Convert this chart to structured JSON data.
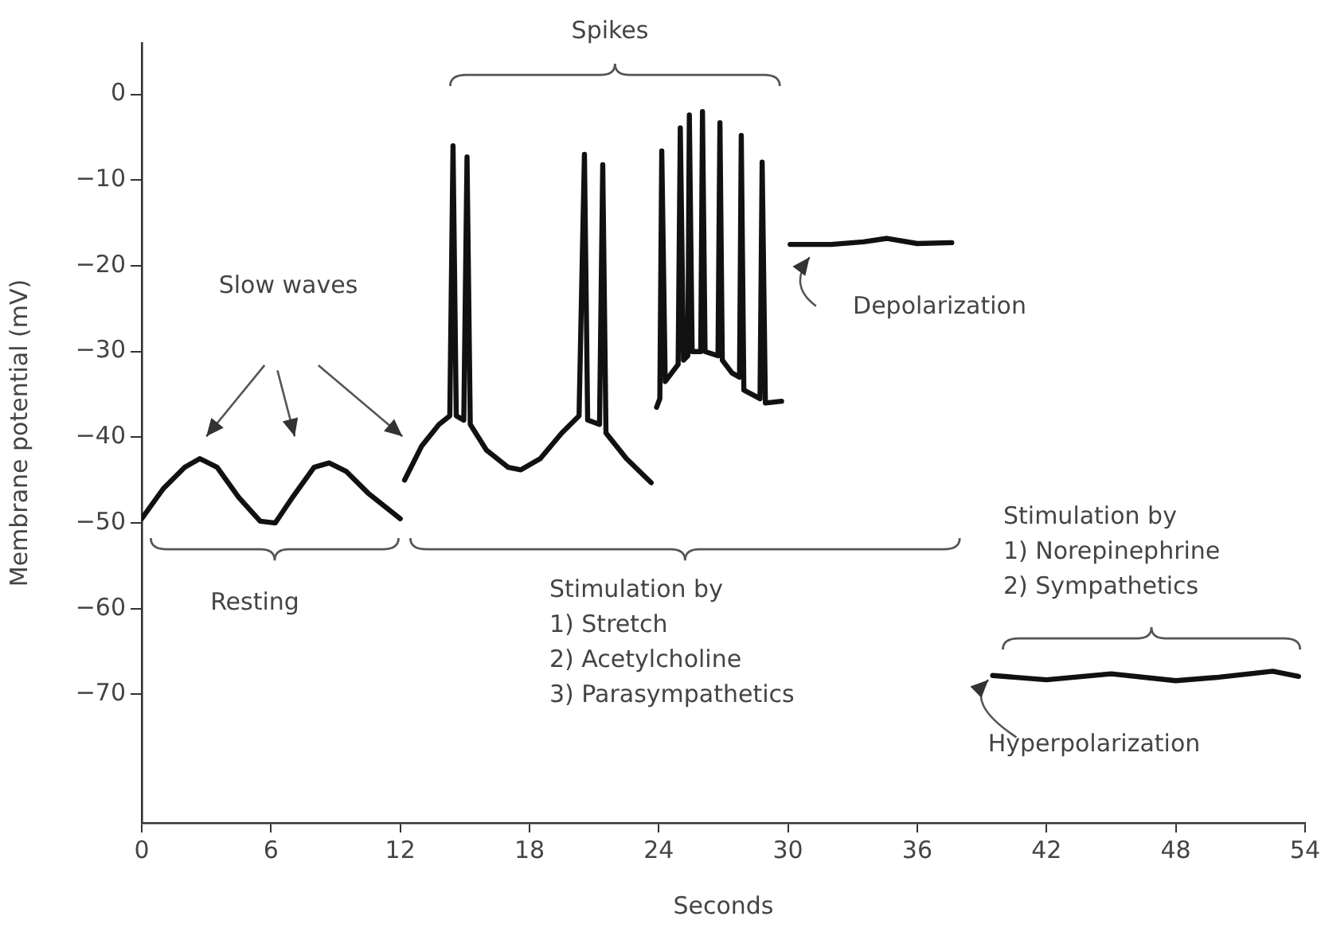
{
  "chart_data": {
    "type": "line",
    "xlabel": "Seconds",
    "ylabel": "Membrane potential (mV)",
    "xlim": [
      0,
      54
    ],
    "ylim": [
      -85,
      6
    ],
    "xticks": [
      0,
      6,
      12,
      18,
      24,
      30,
      36,
      42,
      48,
      54
    ],
    "yticks": [
      0,
      -10,
      -20,
      -30,
      -40,
      -50,
      -60,
      -70
    ],
    "grid": false,
    "legend": false,
    "marker": "none",
    "line_style": "solid",
    "series": [
      {
        "color": "#111111",
        "x": [
          0,
          1,
          2,
          2.7,
          3.5,
          4.5,
          5.5,
          6.2,
          7,
          8,
          8.7,
          9.5,
          10.5,
          12
        ],
        "values": [
          -49.5,
          -46,
          -43.5,
          -42.5,
          -43.5,
          -47,
          -49.8,
          -50,
          -47,
          -43.5,
          -43,
          -44,
          -46.5,
          -49.5
        ]
      },
      {
        "color": "#111111",
        "x": [
          12.2,
          13,
          13.8,
          14.3,
          14.45,
          14.6,
          14.95,
          15.1,
          15.25,
          16,
          17,
          17.6,
          18.5,
          19.5,
          20.3,
          20.55,
          20.7,
          21.25,
          21.4,
          21.55,
          22.5,
          23.65
        ],
        "values": [
          -45,
          -41,
          -38.5,
          -37.5,
          -6,
          -37.5,
          -38,
          -7.3,
          -38.5,
          -41.5,
          -43.5,
          -43.8,
          -42.5,
          -39.5,
          -37.5,
          -7,
          -38,
          -38.5,
          -8.2,
          -39.5,
          -42.5,
          -45.3
        ]
      },
      {
        "color": "#111111",
        "x": [
          23.9,
          24.05,
          24.14,
          24.3,
          24.9,
          25,
          25.15,
          25.35,
          25.42,
          25.55,
          25.95,
          26.03,
          26.15,
          26.75,
          26.84,
          26.95,
          27.4,
          27.75,
          27.83,
          27.95,
          28.7,
          28.8,
          28.95,
          29.7
        ],
        "values": [
          -36.5,
          -35.5,
          -6.6,
          -33.5,
          -31.5,
          -3.9,
          -31,
          -30.5,
          -2.4,
          -30,
          -30,
          -2,
          -30,
          -30.5,
          -3.3,
          -31,
          -32.5,
          -33,
          -4.8,
          -34.5,
          -35.5,
          -7.9,
          -36,
          -35.8
        ]
      },
      {
        "color": "#111111",
        "x": [
          30.1,
          32,
          33.5,
          34.6,
          36,
          37.6
        ],
        "values": [
          -17.5,
          -17.5,
          -17.2,
          -16.8,
          -17.4,
          -17.3
        ]
      },
      {
        "color": "#111111",
        "x": [
          39.5,
          42,
          45,
          48,
          50,
          52.5,
          53.7
        ],
        "values": [
          -67.8,
          -68.3,
          -67.6,
          -68.4,
          -68,
          -67.3,
          -67.9
        ]
      }
    ],
    "annotations": [
      "Spikes",
      "Slow waves",
      "Resting",
      "Stimulation by\n1) Stretch\n2) Acetylcholine\n3) Parasympathetics",
      "Depolarization",
      "Stimulation by\n1) Norepinephrine\n2) Sympathetics",
      "Hyperpolarization"
    ]
  }
}
